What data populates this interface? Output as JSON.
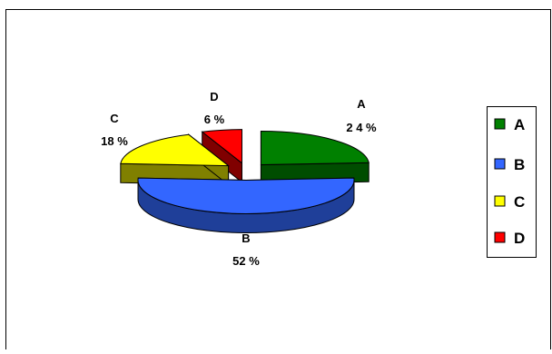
{
  "chart_data": {
    "type": "pie",
    "title": "",
    "categories": [
      "A",
      "B",
      "C",
      "D"
    ],
    "values": [
      24,
      52,
      18,
      6
    ],
    "value_labels": [
      "2 4 %",
      "52 %",
      "18 %",
      "6 %"
    ],
    "colors": [
      "#008000",
      "#3366ff",
      "#ffff00",
      "#ff0000"
    ],
    "side_colors": [
      "#004d00",
      "#1f3f99",
      "#808000",
      "#800000"
    ],
    "legend": {
      "placement": "right",
      "entries": [
        "A",
        "B",
        "C",
        "D"
      ]
    },
    "style": "3d-exploded"
  }
}
